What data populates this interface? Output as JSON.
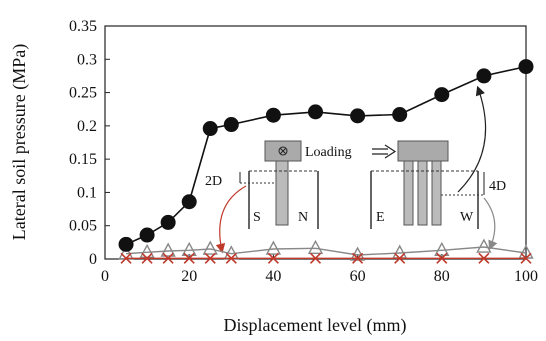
{
  "chart_data": {
    "type": "line",
    "title": "",
    "xlabel": "Displacement level (mm)",
    "ylabel": "Lateral soil pressure (MPa)",
    "xlim": [
      0,
      100
    ],
    "ylim": [
      0,
      0.35
    ],
    "xticks": [
      0,
      20,
      40,
      60,
      80,
      100
    ],
    "yticks": [
      0,
      0.05,
      0.1,
      0.15,
      0.2,
      0.25,
      0.3,
      0.35
    ],
    "xtick_labels": [
      "0",
      "20",
      "40",
      "60",
      "80",
      "100"
    ],
    "ytick_labels": [
      "0",
      "0.05",
      "0.1",
      "0.15",
      "0.2",
      "0.25",
      "0.3",
      "0.35"
    ],
    "legend": "none",
    "series": [
      {
        "marker": "circle",
        "color": "#111111",
        "x": [
          5,
          10,
          15,
          20,
          25,
          30,
          40,
          50,
          60,
          70,
          80,
          90,
          100
        ],
        "y": [
          0.022,
          0.036,
          0.055,
          0.086,
          0.196,
          0.202,
          0.216,
          0.221,
          0.215,
          0.217,
          0.247,
          0.275,
          0.289
        ]
      },
      {
        "marker": "triangle-open",
        "color": "#888888",
        "x": [
          5,
          10,
          15,
          20,
          25,
          30,
          40,
          50,
          60,
          70,
          80,
          90,
          100
        ],
        "y": [
          0.008,
          0.01,
          0.012,
          0.013,
          0.015,
          0.008,
          0.015,
          0.016,
          0.006,
          0.009,
          0.013,
          0.018,
          0.009
        ]
      },
      {
        "marker": "x",
        "color": "#c0392b",
        "x": [
          5,
          10,
          15,
          20,
          25,
          30,
          40,
          50,
          60,
          70,
          80,
          90,
          100
        ],
        "y": [
          0.001,
          0.001,
          0.001,
          0.001,
          0.001,
          0.001,
          0.001,
          0.001,
          0.001,
          0.001,
          0.001,
          0.001,
          0.001
        ]
      }
    ],
    "inset": {
      "loading_label": "Loading",
      "left_dim": "2D",
      "right_dim": "4D",
      "left_labels": [
        "S",
        "N"
      ],
      "right_labels": [
        "E",
        "W"
      ]
    }
  }
}
